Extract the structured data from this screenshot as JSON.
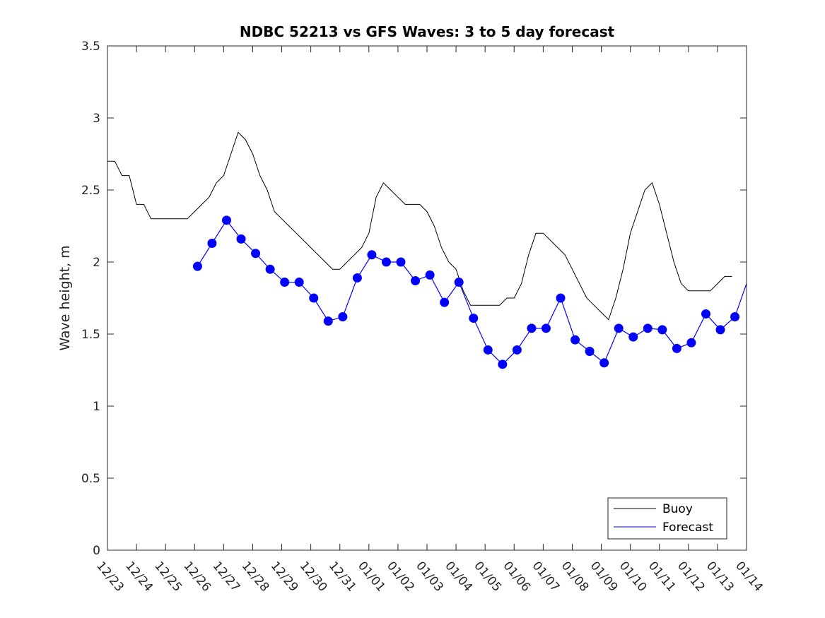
{
  "chart_data": {
    "type": "line",
    "title": "NDBC 52213 vs GFS Waves: 3 to 5 day forecast",
    "xlabel": "",
    "ylabel": "Wave height, m",
    "ylim": [
      0,
      3.5
    ],
    "yticks": [
      0,
      0.5,
      1,
      1.5,
      2,
      2.5,
      3,
      3.5
    ],
    "yticklabels": [
      "0",
      "0.5",
      "1",
      "1.5",
      "2",
      "2.5",
      "3",
      "3.5"
    ],
    "xlim": [
      0,
      22
    ],
    "xticks": [
      0,
      1,
      2,
      3,
      4,
      5,
      6,
      7,
      8,
      9,
      10,
      11,
      12,
      13,
      14,
      15,
      16,
      17,
      18,
      19,
      20,
      21,
      22
    ],
    "xticklabels": [
      "12/23",
      "12/24",
      "12/25",
      "12/26",
      "12/27",
      "12/28",
      "12/29",
      "12/30",
      "12/31",
      "01/01",
      "01/02",
      "01/03",
      "01/04",
      "01/05",
      "01/06",
      "01/07",
      "01/08",
      "01/09",
      "01/10",
      "01/11",
      "01/12",
      "01/13",
      "01/14"
    ],
    "legend": {
      "location": "bottom-right",
      "entries": [
        "Buoy",
        "Forecast"
      ]
    },
    "colors": {
      "buoy": "#000000",
      "forecast": "#0000ff",
      "axis": "#262626"
    },
    "series": [
      {
        "name": "Buoy",
        "x": [
          0,
          0.25,
          0.5,
          0.75,
          1,
          1.25,
          1.5,
          1.75,
          2,
          2.25,
          2.5,
          2.75,
          3,
          3.25,
          3.5,
          3.75,
          4,
          4.25,
          4.5,
          4.75,
          5,
          5.25,
          5.5,
          5.75,
          6,
          6.25,
          6.5,
          6.75,
          7,
          7.25,
          7.5,
          7.75,
          8,
          8.25,
          8.5,
          8.75,
          9,
          9.25,
          9.5,
          9.75,
          10,
          10.25,
          10.5,
          10.75,
          11,
          11.25,
          11.5,
          11.75,
          12,
          12.25,
          12.5,
          12.75,
          13,
          13.25,
          13.5,
          13.75,
          14,
          14.25,
          14.5,
          14.75,
          15,
          15.25,
          15.5,
          15.75,
          16,
          16.25,
          16.5,
          16.75,
          17,
          17.25,
          17.5,
          17.75,
          18,
          18.25,
          18.5,
          18.75,
          19,
          19.25,
          19.5,
          19.75,
          20,
          20.25,
          20.5,
          20.75,
          21,
          21.25,
          21.5
        ],
        "values": [
          2.7,
          2.7,
          2.6,
          2.6,
          2.4,
          2.4,
          2.3,
          2.3,
          2.3,
          2.3,
          2.3,
          2.3,
          2.35,
          2.4,
          2.45,
          2.55,
          2.6,
          2.75,
          2.9,
          2.85,
          2.75,
          2.6,
          2.5,
          2.35,
          2.3,
          2.25,
          2.2,
          2.15,
          2.1,
          2.05,
          2.0,
          1.95,
          1.95,
          2.0,
          2.05,
          2.1,
          2.2,
          2.45,
          2.55,
          2.5,
          2.45,
          2.4,
          2.4,
          2.4,
          2.35,
          2.25,
          2.1,
          2.0,
          1.95,
          1.8,
          1.7,
          1.7,
          1.7,
          1.7,
          1.7,
          1.75,
          1.75,
          1.85,
          2.05,
          2.2,
          2.2,
          2.15,
          2.1,
          2.05,
          1.95,
          1.85,
          1.75,
          1.7,
          1.65,
          1.6,
          1.75,
          1.95,
          2.2,
          2.35,
          2.5,
          2.55,
          2.4,
          2.2,
          2.0,
          1.85,
          1.8,
          1.8,
          1.8,
          1.8,
          1.85,
          1.9,
          1.9
        ]
      },
      {
        "name": "Forecast",
        "x": [
          3.1,
          3.6,
          4.1,
          4.6,
          5.1,
          5.6,
          6.1,
          6.6,
          7.1,
          7.6,
          8.1,
          8.6,
          9.1,
          9.6,
          10.1,
          10.6,
          11.1,
          11.6,
          12.1,
          12.6,
          13.1,
          13.6,
          14.1,
          14.6,
          15.1,
          15.6,
          16.1,
          16.6,
          17.1,
          17.6,
          18.1,
          18.6,
          19.1,
          19.6,
          20.1,
          20.6,
          21.1,
          21.6,
          22
        ],
        "values": [
          1.97,
          2.13,
          2.29,
          2.16,
          2.06,
          1.95,
          1.86,
          1.86,
          1.75,
          1.59,
          1.62,
          1.89,
          2.05,
          2.0,
          2.0,
          1.87,
          1.91,
          1.72,
          1.86,
          1.61,
          1.39,
          1.29,
          1.39,
          1.54,
          1.54,
          1.75,
          1.46,
          1.38,
          1.3,
          1.54,
          1.48,
          1.54,
          1.53,
          1.4,
          1.44,
          1.64,
          1.53,
          1.62,
          1.85
        ]
      }
    ]
  }
}
